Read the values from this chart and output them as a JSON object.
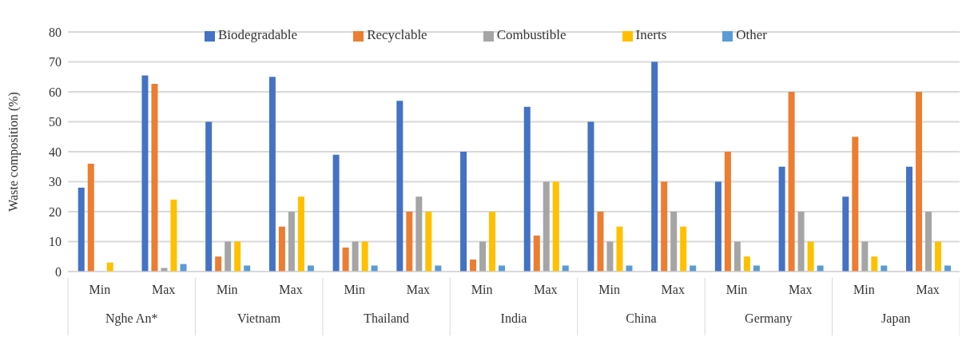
{
  "chart_data": {
    "type": "bar",
    "ylabel": "Waste composition (%)",
    "categories": [
      "Min",
      "Max",
      "Min",
      "Max",
      "Min",
      "Max",
      "Min",
      "Max",
      "Min",
      "Max",
      "Min",
      "Max",
      "Min",
      "Max"
    ],
    "annotations": [
      "Nghe An*",
      "Vietnam",
      "Thailand",
      "India",
      "China",
      "Germany",
      "Japan"
    ],
    "series": [
      {
        "name": "Biodegradable",
        "color": "#4472c4",
        "values": [
          28,
          65.5,
          50,
          65,
          39,
          57,
          40,
          55,
          50,
          70,
          30,
          35,
          25,
          35
        ]
      },
      {
        "name": "Recyclable",
        "color": "#ed7d31",
        "values": [
          36,
          62.7,
          5,
          15,
          8,
          20,
          4,
          12,
          20,
          30,
          40,
          60,
          45,
          60
        ]
      },
      {
        "name": "Combustible",
        "color": "#a5a5a5",
        "values": [
          null,
          1.2,
          10,
          20,
          10,
          25,
          10,
          30,
          10,
          20,
          10,
          20,
          10,
          20
        ]
      },
      {
        "name": "Inerts",
        "color": "#ffc000",
        "values": [
          3,
          24,
          10,
          25,
          10,
          20,
          20,
          30,
          15,
          15,
          5,
          10,
          5,
          10
        ]
      },
      {
        "name": "Other",
        "color": "#5b9bd5",
        "values": [
          null,
          2.5,
          2,
          2,
          2,
          2,
          2,
          2,
          2,
          2,
          2,
          2,
          2,
          2
        ]
      }
    ],
    "ylim": [
      0,
      80
    ],
    "yticks": [
      0,
      10,
      20,
      30,
      40,
      50,
      60,
      70,
      80
    ],
    "grid": "y",
    "legend": "top"
  }
}
